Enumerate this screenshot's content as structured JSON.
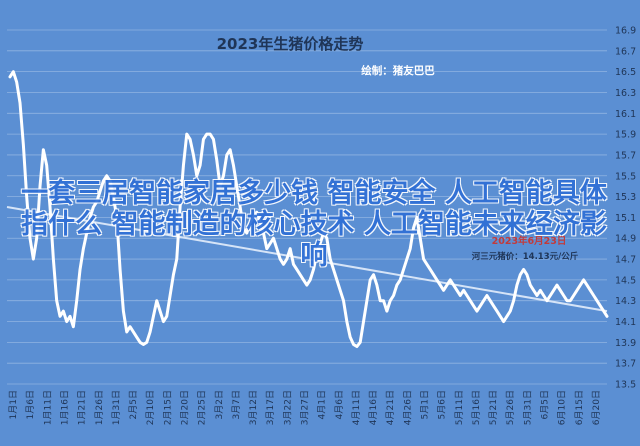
{
  "chart_data": {
    "type": "line",
    "title": "2023年生猪价格走势",
    "subtitle": "绘制：猪友巴巴",
    "xlabel": "",
    "ylabel": "",
    "ylim": [
      13.5,
      16.9
    ],
    "yticks": [
      "16.9",
      "16.7",
      "16.5",
      "16.3",
      "16.1",
      "15.9",
      "15.7",
      "15.5",
      "15.3",
      "15.1",
      "14.9",
      "14.7",
      "14.5",
      "14.3",
      "14.1",
      "13.9",
      "13.7",
      "13.5"
    ],
    "xticks": [
      "1月1日",
      "1月6日",
      "1月11日",
      "1月16日",
      "1月21日",
      "1月26日",
      "1月31日",
      "2月5日",
      "2月10日",
      "2月15日",
      "2月20日",
      "2月25日",
      "3月2日",
      "3月7日",
      "3月12日",
      "3月17日",
      "3月22日",
      "3月27日",
      "4月1日",
      "4月6日",
      "4月11日",
      "4月16日",
      "4月21日",
      "4月26日",
      "5月1日",
      "5月6日",
      "5月11日",
      "5月16日",
      "5月21日",
      "5月26日",
      "5月31日",
      "6月5日",
      "6月10日",
      "6月15日",
      "6月20日"
    ],
    "grid": true,
    "series": [
      {
        "values": [
          16.45,
          16.5,
          16.4,
          16.2,
          15.8,
          15.3,
          14.9,
          14.7,
          14.9,
          15.4,
          15.75,
          15.6,
          15.2,
          14.7,
          14.3,
          14.15,
          14.2,
          14.1,
          14.15,
          14.05,
          14.3,
          14.6,
          14.8,
          14.95,
          15.1,
          15.2,
          15.25,
          15.35,
          15.45,
          15.5,
          15.45,
          15.3,
          15.1,
          14.6,
          14.2,
          14.0,
          14.05,
          14.0,
          13.95,
          13.9,
          13.88,
          13.9,
          14.0,
          14.15,
          14.3,
          14.2,
          14.1,
          14.15,
          14.35,
          14.55,
          14.7,
          15.2,
          15.6,
          15.9,
          15.85,
          15.7,
          15.5,
          15.6,
          15.85,
          15.9,
          15.9,
          15.85,
          15.65,
          15.4,
          15.5,
          15.7,
          15.75,
          15.6,
          15.4,
          15.2,
          15.0,
          14.95,
          15.05,
          15.1,
          15.15,
          15.05,
          14.95,
          14.8,
          14.85,
          14.9,
          14.8,
          14.7,
          14.65,
          14.7,
          14.8,
          14.65,
          14.6,
          14.55,
          14.5,
          14.45,
          14.5,
          14.6,
          14.75,
          14.85,
          14.95,
          14.9,
          14.7,
          14.6,
          14.5,
          14.4,
          14.3,
          14.1,
          13.95,
          13.88,
          13.86,
          13.9,
          14.1,
          14.3,
          14.5,
          14.55,
          14.45,
          14.3,
          14.3,
          14.2,
          14.3,
          14.35,
          14.45,
          14.5,
          14.6,
          14.7,
          14.8,
          15.0,
          15.1,
          14.9,
          14.7,
          14.65,
          14.6,
          14.55,
          14.5,
          14.45,
          14.4,
          14.45,
          14.5,
          14.45,
          14.4,
          14.35,
          14.4,
          14.35,
          14.3,
          14.25,
          14.2,
          14.25,
          14.3,
          14.35,
          14.3,
          14.25,
          14.2,
          14.15,
          14.1,
          14.15,
          14.2,
          14.3,
          14.45,
          14.55,
          14.6,
          14.55,
          14.45,
          14.4,
          14.35,
          14.4,
          14.35,
          14.3,
          14.35,
          14.4,
          14.45,
          14.4,
          14.35,
          14.3,
          14.3,
          14.35,
          14.4,
          14.45,
          14.5,
          14.45,
          14.4,
          14.35,
          14.3,
          14.25,
          14.2,
          14.15
        ],
        "color": "#ffffff"
      }
    ],
    "trendline": {
      "start": 15.2,
      "end": 14.2,
      "color": "#d6e4f7"
    }
  },
  "annotation": {
    "line1": "2023年6月23日",
    "line2": "河三元猪价：14.13元/公斤"
  },
  "overlay_text": "一套三居智能家居多少钱 智能安全 人工智能具体指什么 智能制造的核心技术 人工智能未来经济影响"
}
